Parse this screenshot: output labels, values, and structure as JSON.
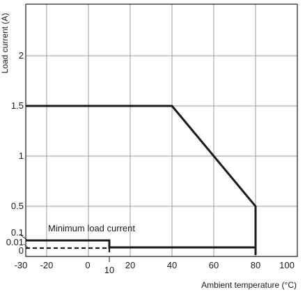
{
  "chart_data": {
    "type": "line",
    "title": "",
    "xlabel": "Ambient temperature (°C)",
    "ylabel": "Load current (A)",
    "xlim": [
      -30,
      100
    ],
    "x_ticks": [
      -30,
      -20,
      0,
      10,
      20,
      40,
      60,
      80,
      100
    ],
    "x_tick_labels": [
      "-30",
      "-20",
      "0",
      "10",
      "20",
      "40",
      "60",
      "80",
      "100"
    ],
    "y_ticks": [
      0,
      0.01,
      0.1,
      0.5,
      1,
      1.5,
      2
    ],
    "y_tick_labels": [
      "0",
      "0.01",
      "0.1",
      "0.5",
      "1",
      "1.5",
      "2"
    ],
    "grid": true,
    "y_scale_note": "non-linear below 0.5 (0, 0.01 and 0.1 compressed near the bottom)",
    "annotations": [
      {
        "text": "Minimum load current"
      }
    ],
    "series": [
      {
        "style": "solid",
        "points": [
          [
            -30,
            1.5
          ],
          [
            40,
            1.5
          ],
          [
            80,
            0.5
          ],
          [
            80,
            0
          ]
        ]
      },
      {
        "style": "solid",
        "points": [
          [
            -30,
            0.1
          ],
          [
            10,
            0.1
          ],
          [
            10,
            0.05
          ],
          [
            80,
            0.05
          ]
        ]
      },
      {
        "style": "dashed",
        "points": [
          [
            -30,
            0.01
          ],
          [
            10,
            0.01
          ],
          [
            10,
            0
          ]
        ]
      }
    ]
  }
}
